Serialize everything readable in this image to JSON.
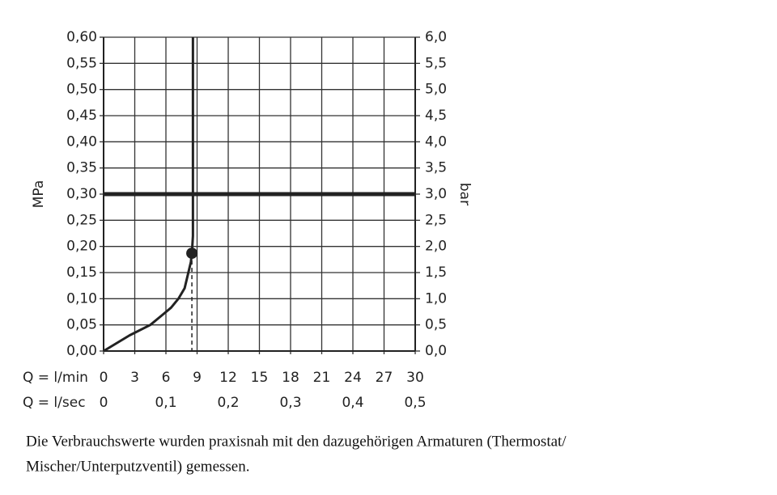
{
  "chart_data": {
    "type": "line",
    "y_label": "MPa",
    "y2_label": "bar",
    "x_label": "Q = l/min",
    "x2_label": "Q = l/sec",
    "xlim": [
      0,
      30
    ],
    "xticks": [
      0,
      3,
      6,
      9,
      12,
      15,
      18,
      21,
      24,
      27,
      30
    ],
    "x2lim": [
      0,
      0.5
    ],
    "x2ticks": [
      0,
      {
        "value": 0.1,
        "label": "0,1"
      },
      {
        "value": 0.2,
        "label": "0,2"
      },
      {
        "value": 0.3,
        "label": "0,3"
      },
      {
        "value": 0.4,
        "label": "0,4"
      },
      {
        "value": 0.5,
        "label": "0,5"
      }
    ],
    "ylim": [
      0,
      0.6
    ],
    "yticks": [
      {
        "value": 0,
        "label": "0,00"
      },
      {
        "value": 0.05,
        "label": "0,05"
      },
      {
        "value": 0.1,
        "label": "0,10"
      },
      {
        "value": 0.15,
        "label": "0,15"
      },
      {
        "value": 0.2,
        "label": "0,20"
      },
      {
        "value": 0.25,
        "label": "0,25"
      },
      {
        "value": 0.3,
        "label": "0,30"
      },
      {
        "value": 0.35,
        "label": "0,35"
      },
      {
        "value": 0.4,
        "label": "0,40"
      },
      {
        "value": 0.45,
        "label": "0,45"
      },
      {
        "value": 0.5,
        "label": "0,50"
      },
      {
        "value": 0.55,
        "label": "0,55"
      },
      {
        "value": 0.6,
        "label": "0,60"
      }
    ],
    "y2lim": [
      0,
      6
    ],
    "y2ticks": [
      {
        "value": 0,
        "label": "0,0"
      },
      {
        "value": 0.5,
        "label": "0,5"
      },
      {
        "value": 1,
        "label": "1,0"
      },
      {
        "value": 1.5,
        "label": "1,5"
      },
      {
        "value": 2,
        "label": "2,0"
      },
      {
        "value": 2.5,
        "label": "2,5"
      },
      {
        "value": 3,
        "label": "3,0"
      },
      {
        "value": 3.5,
        "label": "3,5"
      },
      {
        "value": 4,
        "label": "4,0"
      },
      {
        "value": 4.5,
        "label": "4,5"
      },
      {
        "value": 5,
        "label": "5,0"
      },
      {
        "value": 5.5,
        "label": "5,5"
      },
      {
        "value": 6,
        "label": "6,0"
      }
    ],
    "grid": true,
    "series": [
      {
        "color": "#222222",
        "x": [
          0,
          2.5,
          4.5,
          5.6,
          6.5,
          7.2,
          7.8,
          8.1,
          8.4,
          8.5,
          8.6,
          8.6
        ],
        "values": [
          0,
          0.03,
          0.05,
          0.068,
          0.083,
          0.1,
          0.12,
          0.145,
          0.17,
          0.187,
          0.22,
          0.6
        ]
      }
    ],
    "reference_line": 0.3,
    "marker": {
      "x": 8.5,
      "y": 0.187
    },
    "caption": [
      "Die Verbrauchswerte wurden praxisnah mit den dazugehörigen Armaturen (Thermostat/",
      "Mischer/Unterputzventil) gemessen."
    ]
  }
}
